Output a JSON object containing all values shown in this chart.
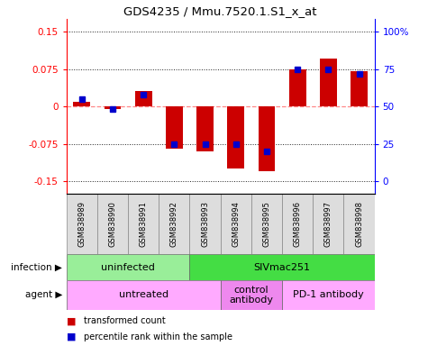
{
  "title": "GDS4235 / Mmu.7520.1.S1_x_at",
  "samples": [
    "GSM838989",
    "GSM838990",
    "GSM838991",
    "GSM838992",
    "GSM838993",
    "GSM838994",
    "GSM838995",
    "GSM838996",
    "GSM838997",
    "GSM838998"
  ],
  "transformed_count": [
    0.01,
    -0.005,
    0.03,
    -0.085,
    -0.09,
    -0.125,
    -0.13,
    0.075,
    0.095,
    0.07
  ],
  "percentile_rank": [
    55,
    48,
    58,
    25,
    25,
    25,
    20,
    75,
    75,
    72
  ],
  "ylim": [
    -0.175,
    0.175
  ],
  "yticks_left": [
    -0.15,
    -0.075,
    0,
    0.075,
    0.15
  ],
  "yticks_right": [
    0,
    25,
    50,
    75,
    100
  ],
  "infection_groups": [
    {
      "label": "uninfected",
      "start": 0,
      "end": 4,
      "color": "#99EE99"
    },
    {
      "label": "SIVmac251",
      "start": 4,
      "end": 10,
      "color": "#44DD44"
    }
  ],
  "agent_groups": [
    {
      "label": "untreated",
      "start": 0,
      "end": 5,
      "color": "#FFAAFF"
    },
    {
      "label": "control\nantibody",
      "start": 5,
      "end": 7,
      "color": "#EE88EE"
    },
    {
      "label": "PD-1 antibody",
      "start": 7,
      "end": 10,
      "color": "#FFAAFF"
    }
  ],
  "bar_color": "#CC0000",
  "dot_color": "#0000CC",
  "zero_line_color": "#FF8888",
  "grid_color": "#222222",
  "sample_bg": "#DDDDDD"
}
